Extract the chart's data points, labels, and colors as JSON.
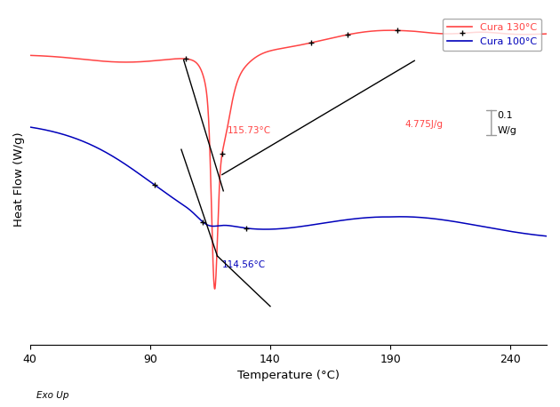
{
  "xlim": [
    40,
    255
  ],
  "xlabel": "Temperature (°C)",
  "ylabel": "Heat Flow (W/g)",
  "xticks": [
    40,
    90,
    140,
    190,
    240
  ],
  "legend_entries": [
    "Cura 130°C",
    "Cura 100°C"
  ],
  "legend_colors": [
    "#ff4444",
    "#0000bb"
  ],
  "annotation_130_temp": "115.73°C",
  "annotation_130_enthalpy": "4.775J/g",
  "annotation_100_temp": "114.56°C",
  "scale_bar_label_top": "0.1",
  "scale_bar_label_bot": "W/g",
  "exo_label": "Exo Up",
  "bg_color": "#ffffff",
  "red_color": "#ff4444",
  "blue_color": "#0000bb",
  "black_color": "#000000",
  "gray_color": "#999999"
}
